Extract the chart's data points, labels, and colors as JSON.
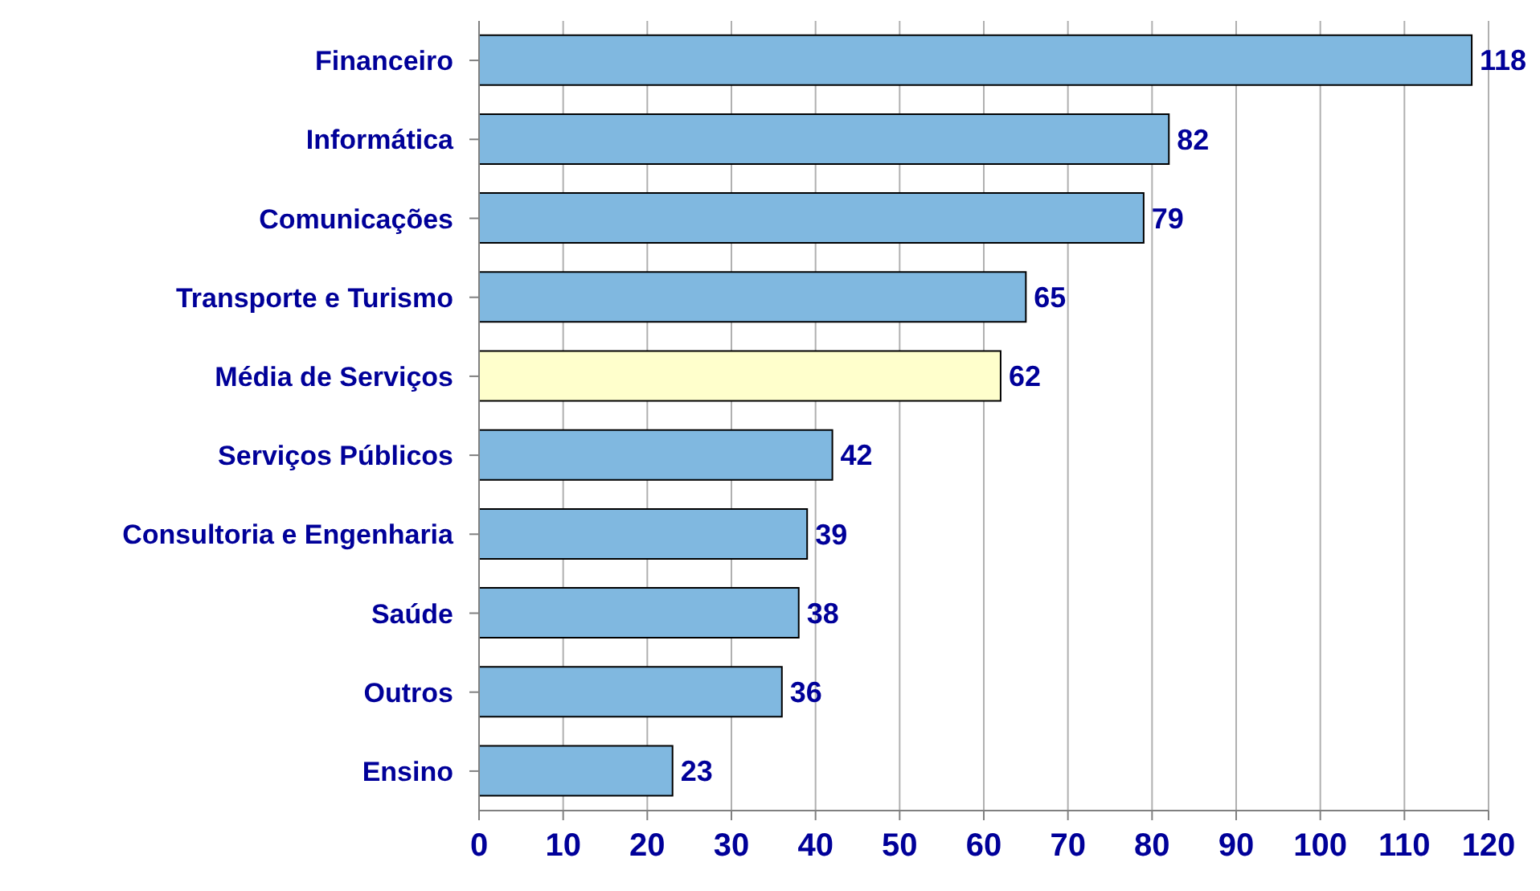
{
  "chart_data": {
    "type": "bar",
    "orientation": "horizontal",
    "categories": [
      "Financeiro",
      "Informática",
      "Comunicações",
      "Transporte e Turismo",
      "Média de Serviços",
      "Serviços Públicos",
      "Consultoria e Engenharia",
      "Saúde",
      "Outros",
      "Ensino"
    ],
    "values": [
      118,
      82,
      79,
      65,
      62,
      42,
      39,
      38,
      36,
      23
    ],
    "colors": [
      "#80b8e0",
      "#80b8e0",
      "#80b8e0",
      "#80b8e0",
      "#ffffcc",
      "#80b8e0",
      "#80b8e0",
      "#80b8e0",
      "#80b8e0",
      "#80b8e0"
    ],
    "xlim": [
      0,
      120
    ],
    "xticks": [
      0,
      10,
      20,
      30,
      40,
      50,
      60,
      70,
      80,
      90,
      100,
      110,
      120
    ],
    "grid": "x",
    "data_labels": true
  }
}
